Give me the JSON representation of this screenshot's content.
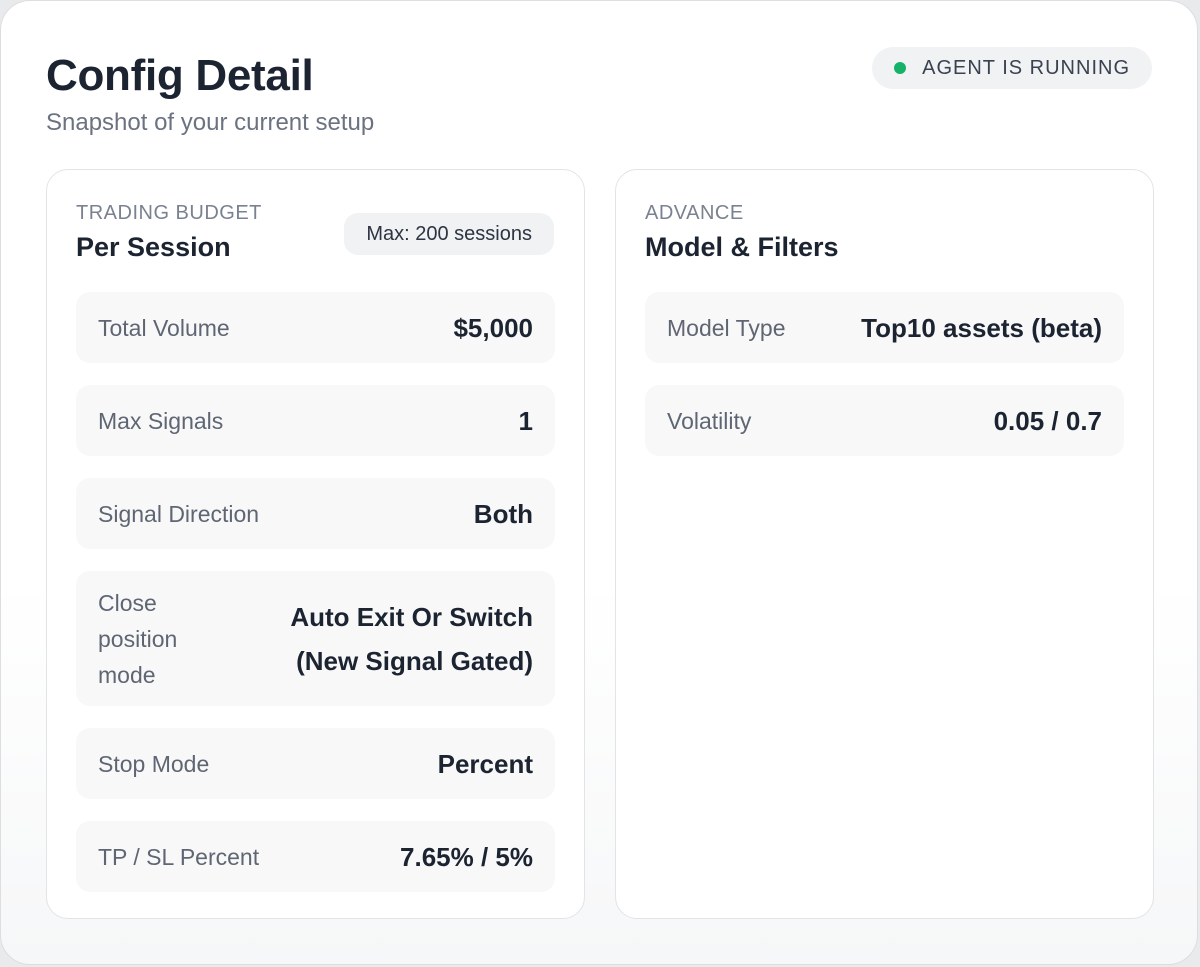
{
  "header": {
    "title": "Config Detail",
    "subtitle": "Snapshot of your current setup",
    "status": {
      "label": "AGENT IS RUNNING",
      "color": "#17b26a"
    }
  },
  "budget_card": {
    "eyebrow": "TRADING BUDGET",
    "heading": "Per Session",
    "badge": "Max: 200 sessions",
    "rows": [
      {
        "label": "Total Volume",
        "value": "$5,000"
      },
      {
        "label": "Max Signals",
        "value": "1"
      },
      {
        "label": "Signal Direction",
        "value": "Both"
      },
      {
        "label": "Close position mode",
        "value": "Auto Exit Or Switch (New Signal Gated)"
      },
      {
        "label": "Stop Mode",
        "value": "Percent"
      },
      {
        "label": "TP / SL Percent",
        "value": "7.65% / 5%"
      }
    ]
  },
  "advance_card": {
    "eyebrow": "ADVANCE",
    "heading": "Model & Filters",
    "rows": [
      {
        "label": "Model Type",
        "value": "Top10 assets (beta)"
      },
      {
        "label": "Volatility",
        "value": "0.05 / 0.7"
      }
    ]
  }
}
